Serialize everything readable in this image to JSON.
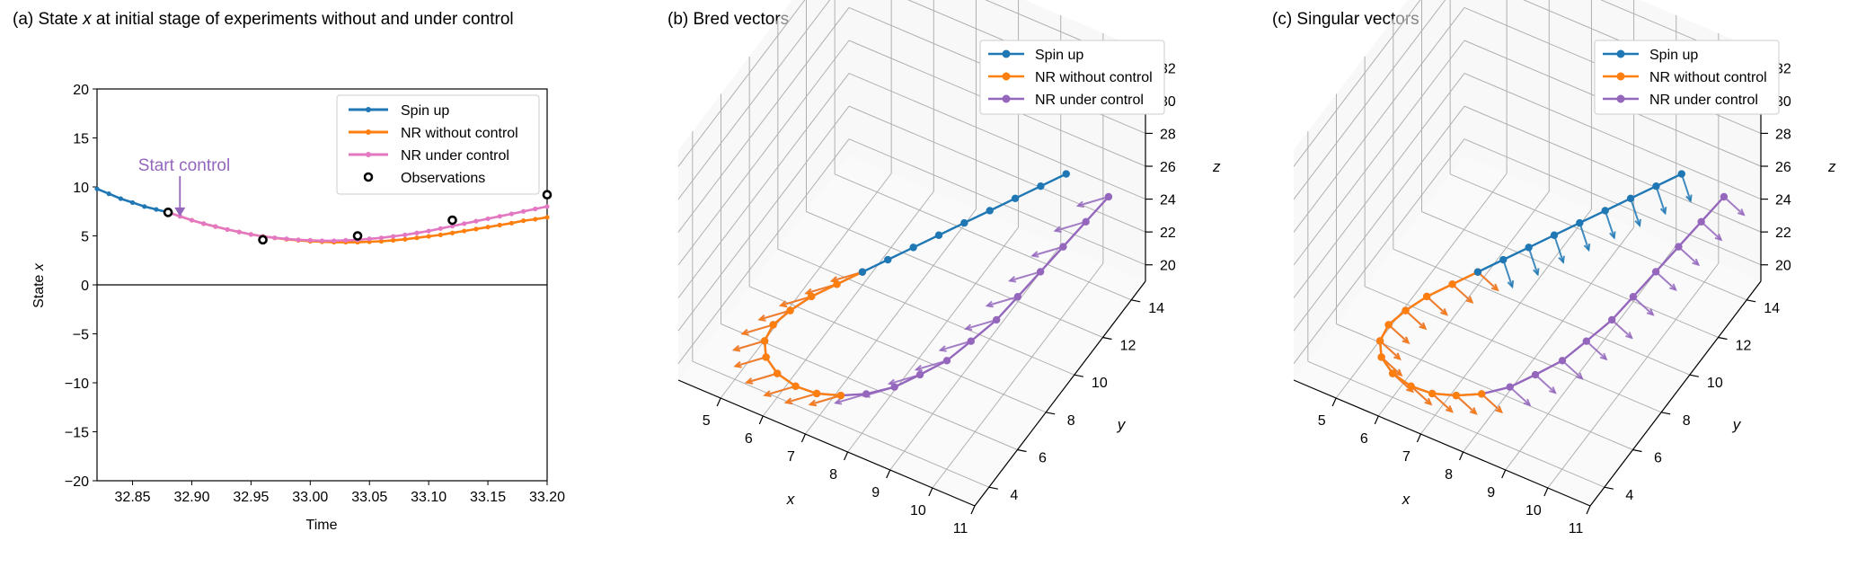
{
  "colors": {
    "spin": "#1f77b4",
    "nr_without": "#ff7f0e",
    "nr_under_a": "#e377c2",
    "nr_under_3d": "#9467bd",
    "annotation": "#9467bd",
    "grid": "#b0b0b0",
    "axis": "#000000"
  },
  "chart_data": [
    {
      "id": "a",
      "type": "line",
      "title_prefix": "(a) State ",
      "title_var": "x",
      "title_suffix": " at initial stage of experiments without and under control",
      "xlabel": "Time",
      "ylabel_prefix": "State ",
      "ylabel_var": "x",
      "xlim": [
        32.82,
        33.2
      ],
      "ylim": [
        -20,
        20
      ],
      "xticks": [
        32.85,
        32.9,
        32.95,
        33.0,
        33.05,
        33.1,
        33.15,
        33.2
      ],
      "xtick_labels": [
        "32.85",
        "32.90",
        "32.95",
        "33.00",
        "33.05",
        "33.10",
        "33.15",
        "33.20"
      ],
      "yticks": [
        -20,
        -15,
        -10,
        -5,
        0,
        5,
        10,
        15,
        20
      ],
      "ytick_labels": [
        "−20",
        "−15",
        "−10",
        "−5",
        "0",
        "5",
        "10",
        "15",
        "20"
      ],
      "hline": 0,
      "annotation": {
        "text": "Start control",
        "x": 32.89,
        "y": 6.8
      },
      "legend": {
        "position": "top-right",
        "entries": [
          {
            "label": "Spin up",
            "kind": "line",
            "color_key": "spin"
          },
          {
            "label": "NR without control",
            "kind": "line",
            "color_key": "nr_without"
          },
          {
            "label": "NR under control",
            "kind": "line",
            "color_key": "nr_under_a"
          },
          {
            "label": "Observations",
            "kind": "marker",
            "color_key": "axis"
          }
        ]
      },
      "series": [
        {
          "name": "Spin up",
          "color_key": "spin",
          "x": [
            32.82,
            32.83,
            32.84,
            32.85,
            32.86,
            32.87,
            32.88
          ],
          "y": [
            9.8,
            9.3,
            8.8,
            8.4,
            8.0,
            7.7,
            7.4
          ]
        },
        {
          "name": "NR without control",
          "color_key": "nr_without",
          "x": [
            32.88,
            32.89,
            32.9,
            32.91,
            32.92,
            32.93,
            32.94,
            32.95,
            32.96,
            32.97,
            32.98,
            32.99,
            33.0,
            33.01,
            33.02,
            33.03,
            33.04,
            33.05,
            33.06,
            33.07,
            33.08,
            33.09,
            33.1,
            33.11,
            33.12,
            33.13,
            33.14,
            33.15,
            33.16,
            33.17,
            33.18,
            33.19,
            33.2
          ],
          "y": [
            7.4,
            7.0,
            6.6,
            6.25,
            5.95,
            5.65,
            5.4,
            5.15,
            4.95,
            4.8,
            4.65,
            4.55,
            4.45,
            4.4,
            4.35,
            4.35,
            4.35,
            4.4,
            4.45,
            4.55,
            4.65,
            4.8,
            4.95,
            5.1,
            5.3,
            5.5,
            5.7,
            5.9,
            6.1,
            6.3,
            6.55,
            6.7,
            6.9
          ]
        },
        {
          "name": "NR under control",
          "color_key": "nr_under_a",
          "x": [
            32.88,
            32.89,
            32.9,
            32.91,
            32.92,
            32.93,
            32.94,
            32.95,
            32.96,
            32.97,
            32.98,
            32.99,
            33.0,
            33.01,
            33.02,
            33.03,
            33.04,
            33.05,
            33.06,
            33.07,
            33.08,
            33.09,
            33.1,
            33.11,
            33.12,
            33.13,
            33.14,
            33.15,
            33.16,
            33.17,
            33.18,
            33.19,
            33.2
          ],
          "y": [
            7.4,
            7.0,
            6.6,
            6.25,
            5.95,
            5.65,
            5.4,
            5.15,
            4.95,
            4.8,
            4.7,
            4.6,
            4.55,
            4.5,
            4.5,
            4.55,
            4.6,
            4.7,
            4.8,
            4.95,
            5.1,
            5.3,
            5.5,
            5.75,
            6.0,
            6.25,
            6.5,
            6.75,
            7.0,
            7.25,
            7.5,
            7.75,
            8.0
          ]
        }
      ],
      "observations": {
        "x": [
          32.88,
          32.96,
          33.04,
          33.12,
          33.2
        ],
        "y": [
          7.4,
          4.6,
          5.0,
          6.6,
          9.2
        ]
      }
    },
    {
      "id": "b",
      "type": "scatter3d-quiver",
      "title": "(b) Bred vectors",
      "xlabel": "x",
      "ylabel": "y",
      "zlabel": "z",
      "xlim": [
        4,
        11
      ],
      "ylim": [
        3,
        15
      ],
      "zlim": [
        19,
        33
      ],
      "xticks": [
        5,
        6,
        7,
        8,
        9,
        10,
        11
      ],
      "yticks": [
        4,
        6,
        8,
        10,
        12,
        14
      ],
      "zticks": [
        20,
        22,
        24,
        26,
        28,
        30,
        32
      ],
      "xtick_labels": [
        "5",
        "6",
        "7",
        "8",
        "9",
        "10",
        "11"
      ],
      "ytick_labels": [
        "4",
        "6",
        "8",
        "10",
        "12",
        "14"
      ],
      "ztick_labels": [
        "20",
        "22",
        "24",
        "26",
        "28",
        "30",
        "32"
      ],
      "legend": {
        "position": "top-right",
        "entries": [
          {
            "label": "Spin up",
            "color_key": "spin"
          },
          {
            "label": "NR without control",
            "color_key": "nr_without"
          },
          {
            "label": "NR under control",
            "color_key": "nr_under_3d"
          }
        ]
      },
      "series": [
        {
          "name": "Spin up",
          "color_key": "spin",
          "points": [
            [
              9.8,
              13.0,
              26.5
            ],
            [
              9.4,
              12.4,
              26.0
            ],
            [
              9.0,
              11.8,
              25.5
            ],
            [
              8.6,
              11.2,
              25.0
            ],
            [
              8.2,
              10.6,
              24.5
            ],
            [
              7.8,
              10.0,
              24.0
            ],
            [
              7.4,
              9.4,
              23.5
            ],
            [
              7.0,
              8.8,
              23.0
            ],
            [
              6.6,
              8.2,
              22.5
            ]
          ]
        },
        {
          "name": "NR without control",
          "color_key": "nr_without",
          "points": [
            [
              6.6,
              8.2,
              22.5
            ],
            [
              6.2,
              7.6,
              22.0
            ],
            [
              5.8,
              7.0,
              21.5
            ],
            [
              5.5,
              6.4,
              21.0
            ],
            [
              5.3,
              5.8,
              20.6
            ],
            [
              5.3,
              5.2,
              20.3
            ],
            [
              5.5,
              4.7,
              20.1
            ],
            [
              5.9,
              4.3,
              20.0
            ],
            [
              6.4,
              4.1,
              20.0
            ],
            [
              6.9,
              4.1,
              20.1
            ],
            [
              7.4,
              4.3,
              20.3
            ]
          ]
        },
        {
          "name": "NR under control",
          "color_key": "nr_under_3d",
          "points": [
            [
              6.6,
              8.2,
              22.5
            ],
            [
              6.2,
              7.6,
              22.0
            ],
            [
              5.8,
              7.0,
              21.5
            ],
            [
              5.5,
              6.4,
              21.0
            ],
            [
              5.3,
              5.8,
              20.6
            ],
            [
              5.3,
              5.2,
              20.3
            ],
            [
              5.5,
              4.7,
              20.1
            ],
            [
              5.9,
              4.3,
              20.0
            ],
            [
              6.4,
              4.1,
              20.0
            ],
            [
              6.9,
              4.1,
              20.1
            ],
            [
              7.4,
              4.3,
              20.3
            ],
            [
              7.9,
              4.6,
              20.6
            ],
            [
              8.4,
              5.1,
              21.0
            ],
            [
              8.8,
              5.7,
              21.5
            ],
            [
              9.2,
              6.4,
              22.0
            ],
            [
              9.5,
              7.2,
              22.6
            ],
            [
              9.8,
              8.1,
              23.2
            ],
            [
              10.0,
              9.0,
              23.8
            ],
            [
              10.2,
              10.0,
              24.4
            ],
            [
              10.4,
              11.0,
              25.0
            ],
            [
              10.6,
              12.0,
              25.6
            ],
            [
              10.8,
              13.0,
              26.2
            ]
          ]
        }
      ]
    },
    {
      "id": "c",
      "type": "scatter3d-quiver",
      "title": "(c) Singular vectors",
      "xlabel": "x",
      "ylabel": "y",
      "zlabel": "z",
      "xlim": [
        4,
        11
      ],
      "ylim": [
        3,
        15
      ],
      "zlim": [
        19,
        33
      ],
      "xticks": [
        5,
        6,
        7,
        8,
        9,
        10,
        11
      ],
      "yticks": [
        4,
        6,
        8,
        10,
        12,
        14
      ],
      "zticks": [
        20,
        22,
        24,
        26,
        28,
        30,
        32
      ],
      "xtick_labels": [
        "5",
        "6",
        "7",
        "8",
        "9",
        "10",
        "11"
      ],
      "ytick_labels": [
        "4",
        "6",
        "8",
        "10",
        "12",
        "14"
      ],
      "ztick_labels": [
        "20",
        "22",
        "24",
        "26",
        "28",
        "30",
        "32"
      ],
      "legend": {
        "position": "top-right",
        "entries": [
          {
            "label": "Spin up",
            "color_key": "spin"
          },
          {
            "label": "NR without control",
            "color_key": "nr_without"
          },
          {
            "label": "NR under control",
            "color_key": "nr_under_3d"
          }
        ]
      },
      "series": [
        {
          "name": "Spin up",
          "color_key": "spin",
          "points": [
            [
              9.8,
              13.0,
              26.5
            ],
            [
              9.4,
              12.4,
              26.0
            ],
            [
              9.0,
              11.8,
              25.5
            ],
            [
              8.6,
              11.2,
              25.0
            ],
            [
              8.2,
              10.6,
              24.5
            ],
            [
              7.8,
              10.0,
              24.0
            ],
            [
              7.4,
              9.4,
              23.5
            ],
            [
              7.0,
              8.8,
              23.0
            ],
            [
              6.6,
              8.2,
              22.5
            ]
          ]
        },
        {
          "name": "NR without control",
          "color_key": "nr_without",
          "points": [
            [
              6.6,
              8.2,
              22.5
            ],
            [
              6.2,
              7.6,
              22.0
            ],
            [
              5.8,
              7.0,
              21.5
            ],
            [
              5.5,
              6.4,
              21.0
            ],
            [
              5.3,
              5.8,
              20.6
            ],
            [
              5.3,
              5.2,
              20.3
            ],
            [
              5.5,
              4.7,
              20.1
            ],
            [
              5.9,
              4.3,
              20.0
            ],
            [
              6.4,
              4.1,
              20.0
            ],
            [
              6.9,
              4.1,
              20.1
            ],
            [
              7.4,
              4.3,
              20.3
            ],
            [
              7.9,
              4.6,
              20.6
            ]
          ]
        },
        {
          "name": "NR under control",
          "color_key": "nr_under_3d",
          "points": [
            [
              6.6,
              8.2,
              22.5
            ],
            [
              6.2,
              7.6,
              22.0
            ],
            [
              5.8,
              7.0,
              21.5
            ],
            [
              5.5,
              6.4,
              21.0
            ],
            [
              5.3,
              5.8,
              20.6
            ],
            [
              5.3,
              5.2,
              20.3
            ],
            [
              5.5,
              4.7,
              20.1
            ],
            [
              5.9,
              4.3,
              20.0
            ],
            [
              6.4,
              4.1,
              20.0
            ],
            [
              6.9,
              4.1,
              20.1
            ],
            [
              7.4,
              4.3,
              20.3
            ],
            [
              7.9,
              4.6,
              20.6
            ],
            [
              8.4,
              5.1,
              21.0
            ],
            [
              8.8,
              5.7,
              21.5
            ],
            [
              9.2,
              6.4,
              22.0
            ],
            [
              9.5,
              7.2,
              22.6
            ],
            [
              9.8,
              8.1,
              23.2
            ],
            [
              10.0,
              9.0,
              23.8
            ],
            [
              10.2,
              10.0,
              24.4
            ],
            [
              10.4,
              11.0,
              25.0
            ],
            [
              10.6,
              12.0,
              25.6
            ],
            [
              10.8,
              13.0,
              26.2
            ]
          ]
        }
      ]
    }
  ]
}
